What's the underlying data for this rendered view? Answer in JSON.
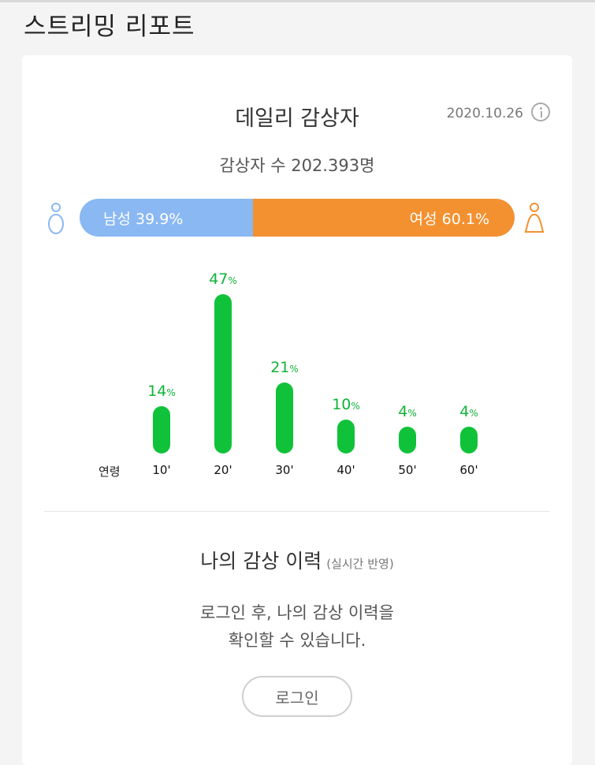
{
  "page": {
    "title": "스트리밍 리포트"
  },
  "report": {
    "title": "데일리 감상자",
    "date": "2020.10.26",
    "info_icon": "info-icon",
    "viewer_count_text": "감상자 수 202.393명"
  },
  "gender": {
    "male_label": "남성 39.9%",
    "male_percent": 39.9,
    "female_label": "여성 60.1%",
    "female_percent": 60.1,
    "male_icon": "male-person-icon",
    "female_icon": "female-person-icon",
    "male_color": "#8ab8f2",
    "female_color": "#f39131"
  },
  "chart_data": {
    "type": "bar",
    "axis_label": "연령",
    "categories": [
      "10'",
      "20'",
      "30'",
      "40'",
      "50'",
      "60'"
    ],
    "values": [
      14,
      47,
      21,
      10,
      4,
      4
    ],
    "unit": "%",
    "color": "#10c23a"
  },
  "history": {
    "title": "나의 감상 이력",
    "realtime_note": "(실시간 반영)",
    "login_msg_line1": "로그인 후, 나의 감상 이력을",
    "login_msg_line2": "확인할 수 있습니다.",
    "login_button": "로그인"
  }
}
